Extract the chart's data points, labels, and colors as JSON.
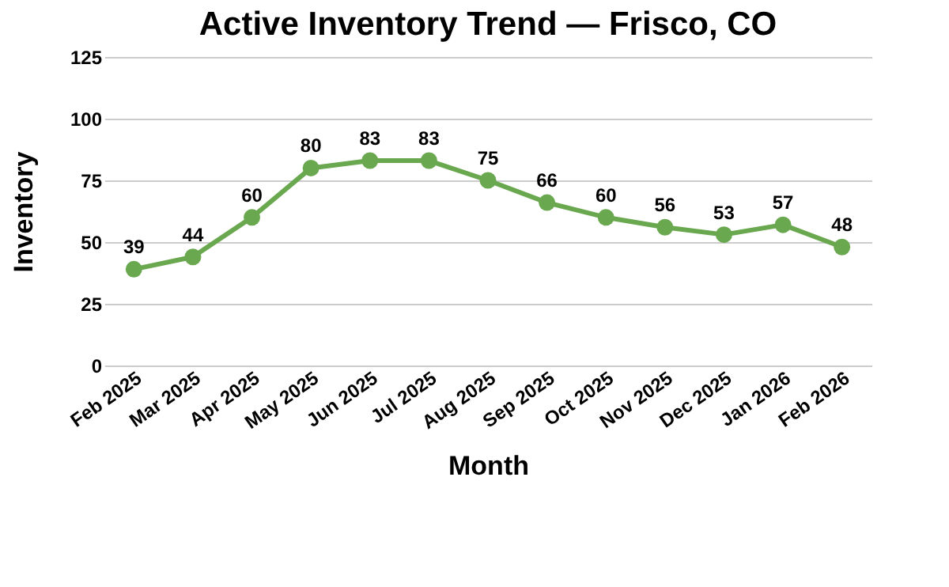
{
  "chart_data": {
    "type": "line",
    "title": "Active Inventory Trend — Frisco, CO",
    "xlabel": "Month",
    "ylabel": "Inventory",
    "categories": [
      "Feb 2025",
      "Mar 2025",
      "Apr 2025",
      "May 2025",
      "Jun 2025",
      "Jul 2025",
      "Aug 2025",
      "Sep 2025",
      "Oct 2025",
      "Nov 2025",
      "Dec 2025",
      "Jan 2026",
      "Feb 2026"
    ],
    "series": [
      {
        "color": "#6aa84f",
        "values": [
          39,
          44,
          60,
          80,
          83,
          83,
          75,
          66,
          60,
          56,
          53,
          57,
          48
        ]
      }
    ],
    "ylim": [
      0,
      125
    ],
    "yticks": [
      0,
      25,
      50,
      75,
      100,
      125
    ],
    "grid": "y",
    "marker": "circle",
    "line_style": "solid",
    "data_labels": true
  }
}
